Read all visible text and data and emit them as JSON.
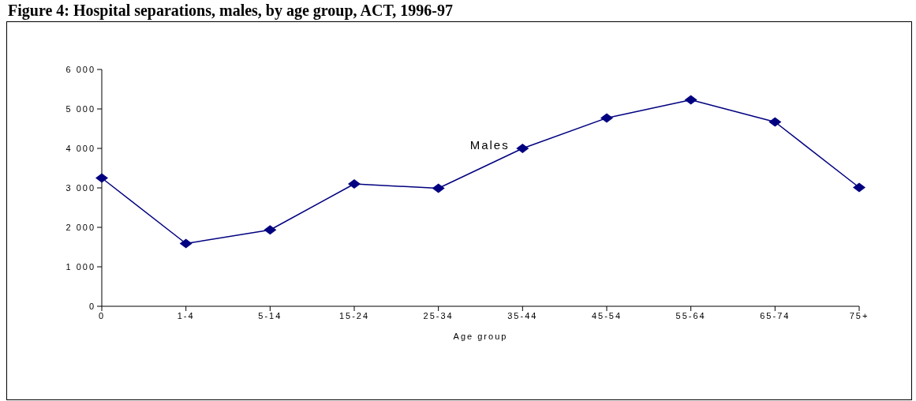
{
  "chart_data": {
    "type": "line",
    "title": "Figure 4: Hospital separations, males, by age group, ACT, 1996-97",
    "xlabel": "Age group",
    "categories": [
      "0",
      "1-4",
      "5-14",
      "15-24",
      "25-34",
      "35-44",
      "45-54",
      "55-64",
      "65-74",
      "75+"
    ],
    "series": [
      {
        "name": "Males",
        "color": "#000080",
        "values": [
          3250,
          1590,
          1935,
          3100,
          2990,
          4000,
          4770,
          5230,
          4670,
          3010
        ]
      }
    ],
    "ylim": [
      0,
      6000
    ],
    "yticks": [
      0,
      1000,
      2000,
      3000,
      4000,
      5000,
      6000
    ],
    "grid": false,
    "legend": false,
    "marker": "diamond",
    "line_style": "solid"
  }
}
